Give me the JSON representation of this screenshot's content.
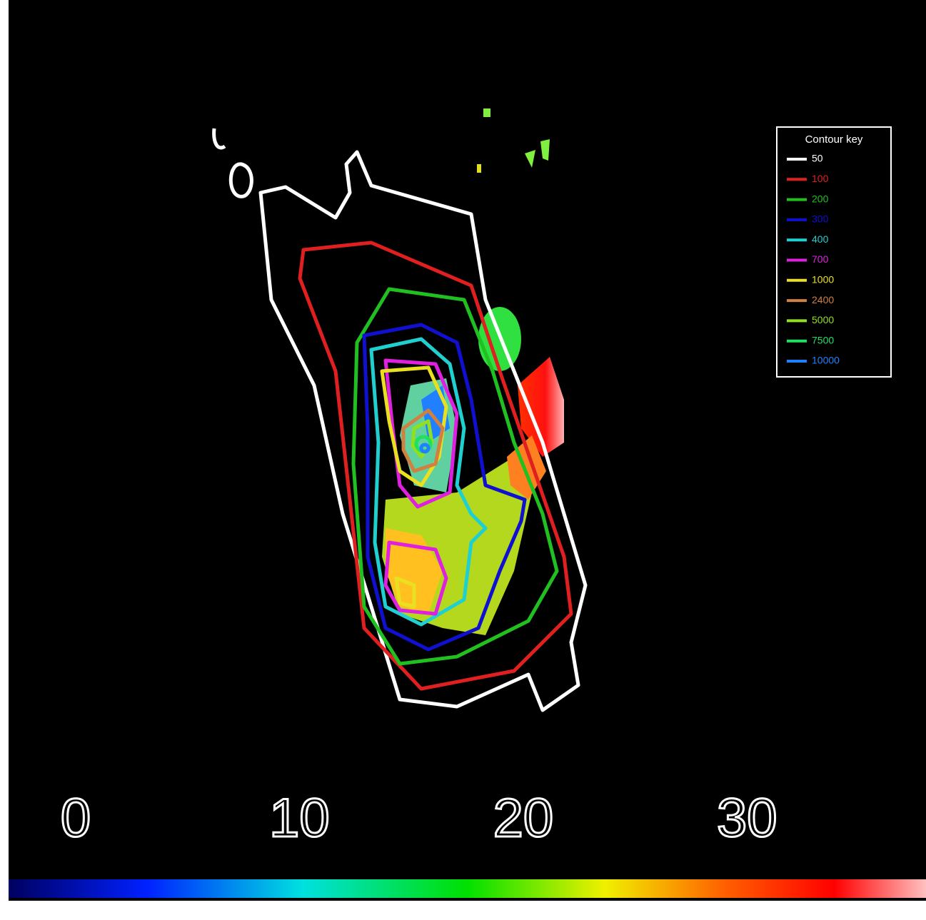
{
  "chart_data": {
    "type": "contour",
    "legend_title": "Contour key",
    "levels": [
      50,
      100,
      200,
      300,
      400,
      700,
      1000,
      2400,
      5000,
      7500,
      10000
    ],
    "colors": [
      "#ffffff",
      "#e02020",
      "#20c020",
      "#1010d0",
      "#20d0d0",
      "#e020e0",
      "#e8e020",
      "#d08040",
      "#90e020",
      "#20e060",
      "#2080ff"
    ],
    "colorbar": {
      "lim": [
        -3,
        38
      ],
      "ticks": [
        0,
        10,
        20,
        30
      ]
    }
  }
}
